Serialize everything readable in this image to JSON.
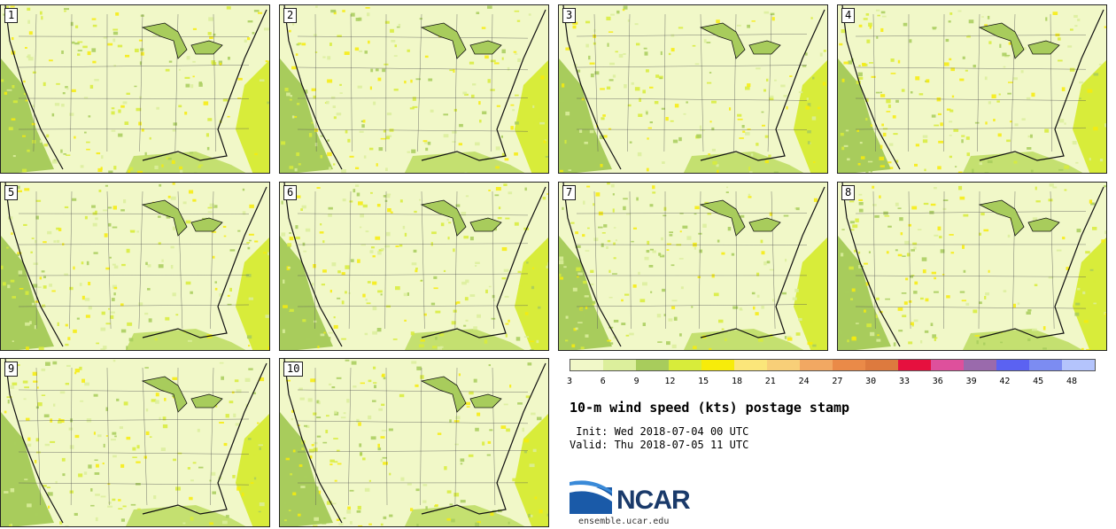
{
  "panels": [
    {
      "number": "1"
    },
    {
      "number": "2"
    },
    {
      "number": "3"
    },
    {
      "number": "4"
    },
    {
      "number": "5"
    },
    {
      "number": "6"
    },
    {
      "number": "7"
    },
    {
      "number": "8"
    },
    {
      "number": "9"
    },
    {
      "number": "10"
    }
  ],
  "colorbar": {
    "colors": [
      "#f1f8c8",
      "#dcef9c",
      "#a8cc5c",
      "#d8ec3a",
      "#f7ec0a",
      "#fbe67a",
      "#f8cf78",
      "#f2a862",
      "#ea8a48",
      "#dd7a3e",
      "#e6103e",
      "#de509c",
      "#9a6aac",
      "#5b62f2",
      "#7c8cf2",
      "#b4c4fc"
    ],
    "ticks": [
      "3",
      "6",
      "9",
      "12",
      "15",
      "18",
      "21",
      "24",
      "27",
      "30",
      "33",
      "36",
      "39",
      "42",
      "45",
      "48"
    ]
  },
  "title": "10-m wind speed (kts) postage stamp",
  "init": " Init: Wed 2018-07-04 00 UTC",
  "valid": "Valid: Thu 2018-07-05 11 UTC",
  "logo_text": "NCAR",
  "site": "ensemble.ucar.edu"
}
